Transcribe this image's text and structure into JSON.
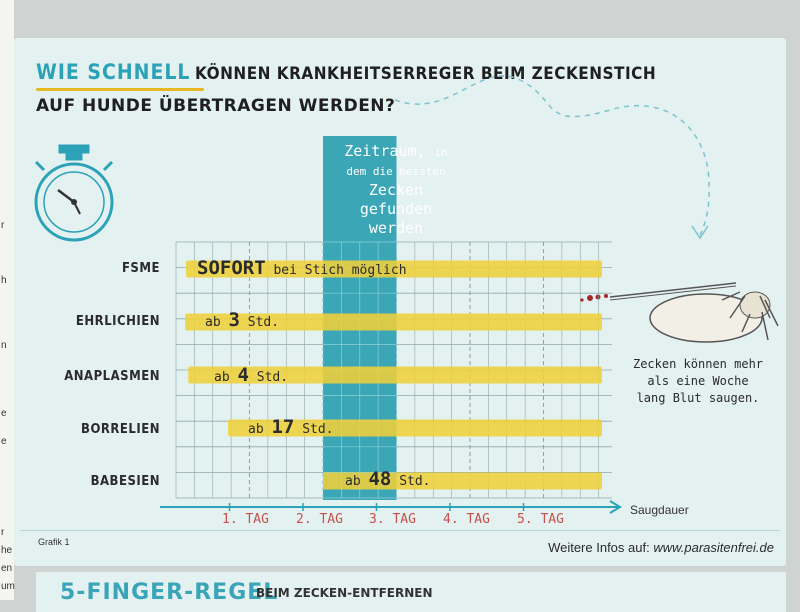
{
  "gutter_fragments": [
    "r",
    "h",
    "n",
    "e",
    "e",
    "r",
    "he",
    "en",
    "um"
  ],
  "title": {
    "accent": "WIE SCHNELL",
    "line1_rest": "KÖNNEN KRANKHEITSERREGER BEIM ZECKENSTICH",
    "line2": "AUF HUNDE ÜBERTRAGEN WERDEN?"
  },
  "band": {
    "line1": "Zeitraum,",
    "line1_small": "in",
    "line2": "dem die meisten",
    "line3": "Zecken",
    "line4": "gefunden",
    "line5": "werden"
  },
  "chart_data": {
    "type": "bar",
    "orientation": "horizontal",
    "xlabel": "Saugdauer",
    "x_ticks": [
      "1. TAG",
      "2. TAG",
      "3. TAG",
      "4. TAG",
      "5. TAG"
    ],
    "x_unit": "days",
    "xlim": [
      0,
      5.6
    ],
    "highlight_range": [
      2,
      3
    ],
    "categories": [
      "FSME",
      "EHRLICHIEN",
      "ANAPLASMEN",
      "BORRELIEN",
      "BABESIEN"
    ],
    "bars": [
      {
        "category": "FSME",
        "start_hours": 0,
        "label_bold": "SOFORT",
        "label_rest": " bei Stich möglich"
      },
      {
        "category": "EHRLICHIEN",
        "start_hours": 3,
        "label_pre": "ab ",
        "label_bold": "3",
        "label_rest": " Std."
      },
      {
        "category": "ANAPLASMEN",
        "start_hours": 4,
        "label_pre": "ab ",
        "label_bold": "4",
        "label_rest": " Std."
      },
      {
        "category": "BORRELIEN",
        "start_hours": 17,
        "label_pre": "ab ",
        "label_bold": "17",
        "label_rest": " Std."
      },
      {
        "category": "BABESIEN",
        "start_hours": 48,
        "label_pre": "ab ",
        "label_bold": "48",
        "label_rest": " Std."
      }
    ]
  },
  "tick_note": "Zecken können mehr als eine Woche lang Blut saugen.",
  "footer": {
    "grafik": "Grafik 1",
    "info_pre": "Weitere Infos auf: ",
    "info_url": "www.parasitenfrei.de"
  },
  "next_section": {
    "heading": "5-FINGER-REGEL",
    "sub": "BEIM ZECKEN-ENTFERNEN"
  },
  "colors": {
    "accent": "#2ba2b7",
    "band": "#3aa6b6",
    "bar": "#efd03a",
    "grid": "#8fa8aa",
    "tick": "#c8504a"
  }
}
